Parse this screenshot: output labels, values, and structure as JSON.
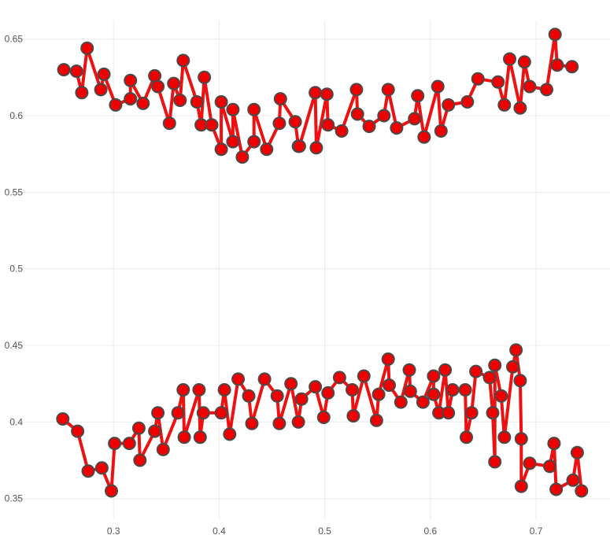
{
  "chart_data": {
    "type": "line",
    "title": "",
    "xlabel": "",
    "ylabel": "",
    "xlim": [
      0.2,
      0.77
    ],
    "ylim": [
      0.3365,
      0.6755
    ],
    "grid": true,
    "x_ticks": [
      0.3,
      0.4,
      0.5,
      0.6,
      0.7
    ],
    "x_tick_labels": [
      "0.3",
      "0.4",
      "0.5",
      "0.6",
      "0.7"
    ],
    "y_ticks": [
      0.35,
      0.4,
      0.45,
      0.5,
      0.55,
      0.6,
      0.65
    ],
    "y_tick_labels": [
      "0.35",
      "0.4",
      "0.45",
      "0.5",
      "0.55",
      "0.6",
      "0.65"
    ],
    "colors": {
      "line": "#ee1111",
      "marker_fill": "#ee0000",
      "marker_edge": "#4a4a4a"
    },
    "series": [
      {
        "x": [
          0.253,
          0.265,
          0.27,
          0.275,
          0.288,
          0.291,
          0.302,
          0.316,
          0.316,
          0.328,
          0.339,
          0.342,
          0.353,
          0.357,
          0.363,
          0.366,
          0.379,
          0.383,
          0.386,
          0.393,
          0.402,
          0.402,
          0.413,
          0.413,
          0.422,
          0.433,
          0.433,
          0.445,
          0.457,
          0.458,
          0.472,
          0.475,
          0.476,
          0.491,
          0.492,
          0.502,
          0.503,
          0.516,
          0.53,
          0.531,
          0.542,
          0.556,
          0.56,
          0.568,
          0.585,
          0.588,
          0.594,
          0.607,
          0.61,
          0.617,
          0.635,
          0.645,
          0.664,
          0.67,
          0.675,
          0.685,
          0.689,
          0.694,
          0.71,
          0.718,
          0.72,
          0.734
        ],
        "y": [
          0.63,
          0.629,
          0.615,
          0.644,
          0.617,
          0.627,
          0.607,
          0.611,
          0.623,
          0.608,
          0.626,
          0.619,
          0.595,
          0.621,
          0.61,
          0.636,
          0.609,
          0.594,
          0.625,
          0.594,
          0.578,
          0.609,
          0.583,
          0.604,
          0.573,
          0.583,
          0.604,
          0.578,
          0.595,
          0.611,
          0.596,
          0.58,
          0.58,
          0.615,
          0.579,
          0.614,
          0.594,
          0.59,
          0.617,
          0.601,
          0.593,
          0.6,
          0.617,
          0.592,
          0.598,
          0.613,
          0.586,
          0.619,
          0.59,
          0.607,
          0.609,
          0.624,
          0.622,
          0.607,
          0.637,
          0.605,
          0.635,
          0.619,
          0.617,
          0.653,
          0.633,
          0.632
        ]
      },
      {
        "x": [
          0.252,
          0.266,
          0.276,
          0.289,
          0.298,
          0.301,
          0.315,
          0.324,
          0.325,
          0.339,
          0.342,
          0.347,
          0.361,
          0.366,
          0.367,
          0.381,
          0.382,
          0.385,
          0.402,
          0.405,
          0.41,
          0.418,
          0.428,
          0.431,
          0.443,
          0.455,
          0.457,
          0.468,
          0.475,
          0.478,
          0.491,
          0.499,
          0.503,
          0.514,
          0.526,
          0.527,
          0.537,
          0.549,
          0.551,
          0.56,
          0.561,
          0.572,
          0.58,
          0.581,
          0.593,
          0.603,
          0.603,
          0.608,
          0.614,
          0.617,
          0.621,
          0.633,
          0.634,
          0.639,
          0.643,
          0.656,
          0.659,
          0.661,
          0.661,
          0.667,
          0.67,
          0.678,
          0.681,
          0.685,
          0.686,
          0.686,
          0.694,
          0.713,
          0.717,
          0.719,
          0.735,
          0.739,
          0.743
        ],
        "y": [
          0.402,
          0.394,
          0.368,
          0.37,
          0.355,
          0.386,
          0.386,
          0.396,
          0.375,
          0.394,
          0.406,
          0.382,
          0.406,
          0.421,
          0.39,
          0.421,
          0.39,
          0.406,
          0.406,
          0.421,
          0.392,
          0.428,
          0.417,
          0.399,
          0.428,
          0.417,
          0.399,
          0.425,
          0.4,
          0.415,
          0.423,
          0.403,
          0.419,
          0.429,
          0.421,
          0.404,
          0.43,
          0.401,
          0.418,
          0.441,
          0.424,
          0.413,
          0.434,
          0.42,
          0.413,
          0.43,
          0.418,
          0.406,
          0.434,
          0.406,
          0.421,
          0.421,
          0.39,
          0.406,
          0.433,
          0.429,
          0.406,
          0.374,
          0.437,
          0.417,
          0.39,
          0.436,
          0.447,
          0.427,
          0.389,
          0.358,
          0.373,
          0.371,
          0.386,
          0.356,
          0.362,
          0.38,
          0.355
        ]
      }
    ]
  }
}
